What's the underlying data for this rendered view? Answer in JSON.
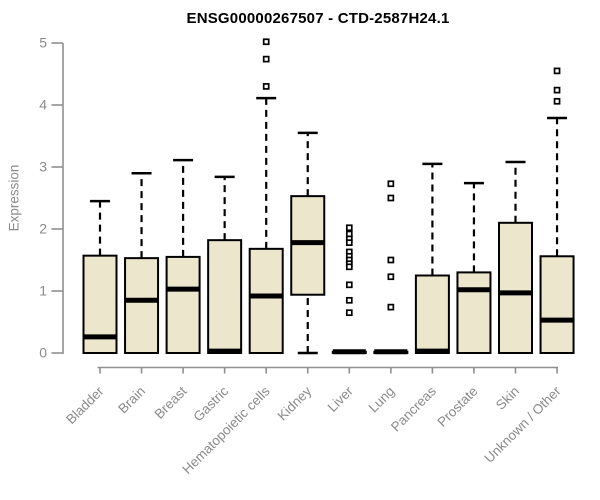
{
  "title": "ENSG00000267507 - CTD-2587H24.1",
  "chart_data": {
    "type": "boxplot",
    "title": "ENSG00000267507 - CTD-2587H24.1",
    "xlabel": "",
    "ylabel": "Expression",
    "ylim": [
      0,
      5
    ],
    "yticks": [
      0,
      1,
      2,
      3,
      4,
      5
    ],
    "grid": false,
    "legend": "none",
    "categories": [
      "Bladder",
      "Brain",
      "Breast",
      "Gastric",
      "Hematopoietic cells",
      "Kidney",
      "Liver",
      "Lung",
      "Pancreas",
      "Prostate",
      "Skin",
      "Unknown / Other"
    ],
    "boxes": [
      {
        "category": "Bladder",
        "whisker_low": 0,
        "q1": 0,
        "median": 0.26,
        "q3": 1.57,
        "whisker_high": 2.45,
        "outliers": []
      },
      {
        "category": "Brain",
        "whisker_low": 0,
        "q1": 0,
        "median": 0.85,
        "q3": 1.53,
        "whisker_high": 2.9,
        "outliers": []
      },
      {
        "category": "Breast",
        "whisker_low": 0,
        "q1": 0,
        "median": 1.03,
        "q3": 1.55,
        "whisker_high": 3.11,
        "outliers": []
      },
      {
        "category": "Gastric",
        "whisker_low": 0,
        "q1": 0,
        "median": 0.03,
        "q3": 1.82,
        "whisker_high": 2.84,
        "outliers": []
      },
      {
        "category": "Hematopoietic cells",
        "whisker_low": 0,
        "q1": 0,
        "median": 0.92,
        "q3": 1.68,
        "whisker_high": 4.11,
        "outliers": [
          5.02,
          4.74,
          4.3
        ]
      },
      {
        "category": "Kidney",
        "whisker_low": 0,
        "q1": 0.94,
        "median": 1.78,
        "q3": 2.53,
        "whisker_high": 3.55,
        "outliers": []
      },
      {
        "category": "Liver",
        "whisker_low": 0,
        "q1": 0,
        "median": 0.02,
        "q3": 0.02,
        "whisker_high": 0.02,
        "outliers": [
          2.02,
          1.92,
          1.84,
          1.78,
          1.63,
          1.56,
          1.5,
          1.44,
          1.39,
          1.1,
          0.85,
          0.65
        ]
      },
      {
        "category": "Lung",
        "whisker_low": 0,
        "q1": 0,
        "median": 0.02,
        "q3": 0.02,
        "whisker_high": 0.02,
        "outliers": [
          2.73,
          2.5,
          1.5,
          1.23,
          0.74
        ]
      },
      {
        "category": "Pancreas",
        "whisker_low": 0,
        "q1": 0,
        "median": 0.03,
        "q3": 1.25,
        "whisker_high": 3.05,
        "outliers": []
      },
      {
        "category": "Prostate",
        "whisker_low": 0,
        "q1": 0,
        "median": 1.02,
        "q3": 1.3,
        "whisker_high": 2.74,
        "outliers": []
      },
      {
        "category": "Skin",
        "whisker_low": 0,
        "q1": 0,
        "median": 0.97,
        "q3": 2.1,
        "whisker_high": 3.08,
        "outliers": []
      },
      {
        "category": "Unknown / Other",
        "whisker_low": 0,
        "q1": 0,
        "median": 0.53,
        "q3": 1.56,
        "whisker_high": 3.79,
        "outliers": [
          4.55,
          4.24,
          4.06
        ]
      }
    ],
    "colors": {
      "box_fill": "#ece7cc",
      "box_border": "#000000",
      "median": "#000000",
      "whisker": "#000000",
      "outlier": "#000000",
      "axis": "#8f8f8f",
      "tick_label": "#8a8a8a",
      "title": "#000000",
      "background": "#ffffff"
    }
  }
}
